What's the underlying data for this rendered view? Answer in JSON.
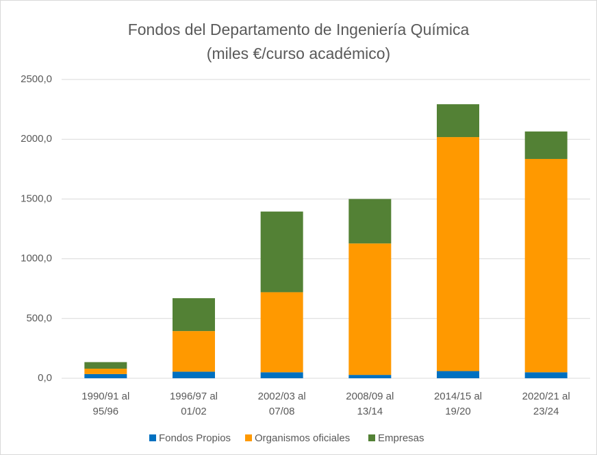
{
  "chart_data": {
    "type": "stacked_bar",
    "title": [
      "Fondos del Departamento de Ingeniería Química",
      "(miles €/curso académico)"
    ],
    "categories": [
      [
        "1990/91 al",
        "95/96"
      ],
      [
        "1996/97 al",
        "01/02"
      ],
      [
        "2002/03 al",
        "07/08"
      ],
      [
        "2008/09  al",
        "13/14"
      ],
      [
        "2014/15 al",
        "19/20"
      ],
      [
        "2020/21 al",
        "23/24"
      ]
    ],
    "series": [
      {
        "name": "Fondos Propios",
        "color": "#0070c0",
        "values": [
          35,
          55,
          50,
          28,
          60,
          50
        ]
      },
      {
        "name": "Organismos oficiales",
        "color": "#ff9900",
        "values": [
          45,
          340,
          670,
          1100,
          1958,
          1785
        ]
      },
      {
        "name": "Empresas",
        "color": "#538135",
        "values": [
          55,
          275,
          675,
          372,
          275,
          230
        ]
      }
    ],
    "ylim": [
      0,
      2500
    ],
    "yticks": [
      {
        "value": 0,
        "label": "0,0"
      },
      {
        "value": 500,
        "label": "500,0"
      },
      {
        "value": 1000,
        "label": "1000,0"
      },
      {
        "value": 1500,
        "label": "1500,0"
      },
      {
        "value": 2000,
        "label": "2000,0"
      },
      {
        "value": 2500,
        "label": "2500,0"
      }
    ],
    "grid": true,
    "legend": "bottom"
  }
}
